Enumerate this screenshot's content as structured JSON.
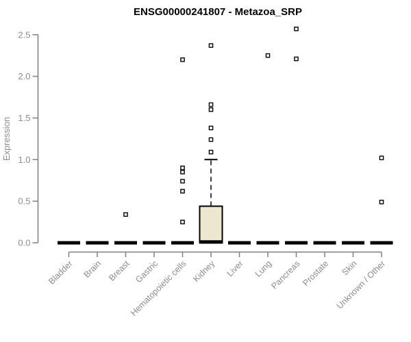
{
  "colors": {
    "background": "#ffffff",
    "axis": "#7f7f7f",
    "label_gray": "#8c8c8c",
    "title_color": "#000000",
    "box_fill": "#ece7ce",
    "box_stroke": "#000000",
    "point_fill": "#ffffff",
    "point_stroke": "#000000"
  },
  "chart_data": {
    "type": "boxplot",
    "title": "ENSG00000241807 - Metazoa_SRP",
    "xlabel": "",
    "ylabel": "Expression",
    "ylim": [
      0,
      2.5
    ],
    "yticks": [
      0,
      0.5,
      1,
      1.5,
      2,
      2.5
    ],
    "grid": false,
    "legend": "none",
    "categories": [
      "Bladder",
      "Brain",
      "Breast",
      "Gastric",
      "Hematopoietic cells",
      "Kidney",
      "Liver",
      "Lung",
      "Pancreas",
      "Prostate",
      "Skin",
      "Unknown / Other"
    ],
    "series": [
      {
        "name": "Bladder",
        "q1": 0,
        "median": 0,
        "q3": 0,
        "whisker_low": 0,
        "whisker_high": 0,
        "outliers": []
      },
      {
        "name": "Brain",
        "q1": 0,
        "median": 0,
        "q3": 0,
        "whisker_low": 0,
        "whisker_high": 0,
        "outliers": []
      },
      {
        "name": "Breast",
        "q1": 0,
        "median": 0,
        "q3": 0,
        "whisker_low": 0,
        "whisker_high": 0,
        "outliers": [
          0.34
        ]
      },
      {
        "name": "Gastric",
        "q1": 0,
        "median": 0,
        "q3": 0,
        "whisker_low": 0,
        "whisker_high": 0,
        "outliers": []
      },
      {
        "name": "Hematopoietic cells",
        "q1": 0,
        "median": 0,
        "q3": 0,
        "whisker_low": 0,
        "whisker_high": 0,
        "outliers": [
          0.25,
          0.62,
          0.74,
          0.85,
          0.9,
          2.2
        ]
      },
      {
        "name": "Kidney",
        "q1": 0,
        "median": 0.01,
        "q3": 0.44,
        "whisker_low": 0,
        "whisker_high": 1.0,
        "outliers": [
          1.09,
          1.24,
          1.38,
          1.6,
          1.66,
          2.37
        ]
      },
      {
        "name": "Liver",
        "q1": 0,
        "median": 0,
        "q3": 0,
        "whisker_low": 0,
        "whisker_high": 0,
        "outliers": []
      },
      {
        "name": "Lung",
        "q1": 0,
        "median": 0,
        "q3": 0,
        "whisker_low": 0,
        "whisker_high": 0,
        "outliers": [
          2.25
        ]
      },
      {
        "name": "Pancreas",
        "q1": 0,
        "median": 0,
        "q3": 0,
        "whisker_low": 0,
        "whisker_high": 0,
        "outliers": [
          2.21,
          2.57
        ]
      },
      {
        "name": "Prostate",
        "q1": 0,
        "median": 0,
        "q3": 0,
        "whisker_low": 0,
        "whisker_high": 0,
        "outliers": []
      },
      {
        "name": "Skin",
        "q1": 0,
        "median": 0,
        "q3": 0,
        "whisker_low": 0,
        "whisker_high": 0,
        "outliers": []
      },
      {
        "name": "Unknown / Other",
        "q1": 0,
        "median": 0,
        "q3": 0,
        "whisker_low": 0,
        "whisker_high": 0,
        "outliers": [
          0.49,
          1.02
        ]
      }
    ]
  }
}
